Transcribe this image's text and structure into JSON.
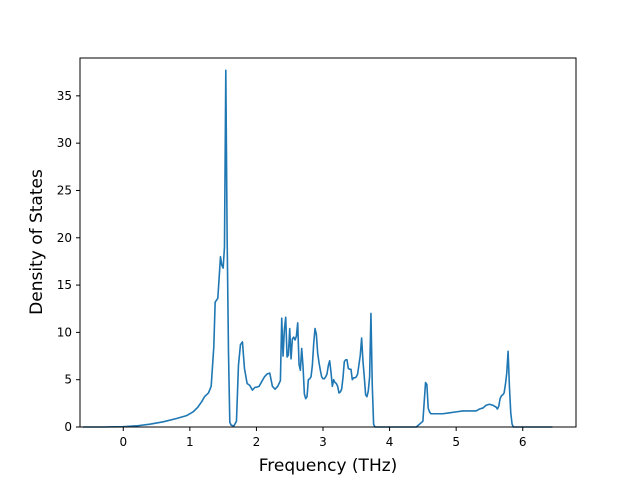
{
  "chart_data": {
    "type": "line",
    "title": "",
    "xlabel": "Frequency (THz)",
    "ylabel": "Density of States",
    "xlim": [
      -0.65,
      6.8
    ],
    "ylim": [
      0,
      39
    ],
    "xticks": [
      0,
      1,
      2,
      3,
      4,
      5,
      6
    ],
    "yticks": [
      0,
      5,
      10,
      15,
      20,
      25,
      30,
      35
    ],
    "grid": false,
    "legend": "none",
    "series_color": "#1f77b4",
    "series": [
      {
        "x": [
          -0.6,
          -0.3,
          0.0,
          0.2,
          0.4,
          0.6,
          0.8,
          0.95,
          1.05,
          1.12,
          1.18,
          1.22,
          1.28,
          1.32,
          1.36,
          1.38,
          1.42,
          1.46,
          1.48,
          1.5,
          1.52,
          1.54,
          1.56,
          1.58,
          1.6,
          1.62,
          1.66,
          1.7,
          1.73,
          1.76,
          1.79,
          1.82,
          1.86,
          1.9,
          1.94,
          1.98,
          2.0,
          2.04,
          2.08,
          2.12,
          2.16,
          2.2,
          2.24,
          2.28,
          2.32,
          2.36,
          2.38,
          2.4,
          2.42,
          2.44,
          2.46,
          2.48,
          2.5,
          2.52,
          2.54,
          2.56,
          2.58,
          2.6,
          2.62,
          2.64,
          2.66,
          2.68,
          2.7,
          2.72,
          2.74,
          2.76,
          2.78,
          2.8,
          2.82,
          2.84,
          2.86,
          2.88,
          2.9,
          2.92,
          2.94,
          2.96,
          2.98,
          3.0,
          3.02,
          3.04,
          3.06,
          3.08,
          3.1,
          3.12,
          3.14,
          3.16,
          3.18,
          3.2,
          3.22,
          3.24,
          3.26,
          3.28,
          3.3,
          3.32,
          3.34,
          3.36,
          3.38,
          3.4,
          3.42,
          3.44,
          3.46,
          3.48,
          3.5,
          3.52,
          3.54,
          3.56,
          3.58,
          3.6,
          3.62,
          3.64,
          3.66,
          3.68,
          3.7,
          3.72,
          3.74,
          3.76,
          3.78,
          3.8,
          3.82,
          3.84,
          3.86,
          3.88,
          3.9,
          3.92,
          3.94,
          3.96,
          3.98,
          4.0,
          4.02,
          4.04,
          4.06,
          4.08,
          4.1,
          4.12,
          4.14,
          4.16,
          4.18,
          4.2,
          4.22,
          4.3,
          4.4,
          4.5,
          4.54,
          4.56,
          4.58,
          4.6,
          4.62,
          4.64,
          4.66,
          4.7,
          4.8,
          4.9,
          5.0,
          5.1,
          5.2,
          5.3,
          5.35,
          5.4,
          5.45,
          5.5,
          5.55,
          5.6,
          5.62,
          5.64,
          5.66,
          5.68,
          5.7,
          5.72,
          5.74,
          5.76,
          5.78,
          5.8,
          5.82,
          5.84,
          5.86,
          5.9,
          6.0,
          6.2,
          6.44
        ],
        "y": [
          0,
          0,
          0.03,
          0.12,
          0.3,
          0.55,
          0.9,
          1.2,
          1.6,
          2.1,
          2.7,
          3.2,
          3.6,
          4.3,
          8.5,
          13.2,
          13.6,
          18.0,
          17.1,
          16.8,
          19.0,
          37.7,
          20.0,
          8.0,
          0.5,
          0.2,
          0.1,
          0.6,
          6.5,
          8.7,
          9.0,
          6.2,
          4.6,
          4.4,
          3.9,
          4.2,
          4.2,
          4.3,
          4.8,
          5.3,
          5.6,
          5.7,
          4.3,
          4.0,
          4.3,
          4.9,
          11.5,
          7.5,
          10.3,
          11.6,
          7.4,
          7.6,
          10.4,
          7.2,
          9.3,
          9.5,
          9.2,
          9.6,
          11.0,
          6.6,
          6.0,
          8.3,
          6.4,
          3.5,
          3.0,
          3.2,
          5.0,
          5.1,
          5.3,
          6.5,
          8.8,
          10.4,
          9.8,
          7.8,
          6.8,
          6.0,
          5.3,
          5.1,
          5.1,
          5.3,
          5.6,
          6.5,
          7.0,
          5.8,
          4.3,
          5.0,
          4.7,
          4.6,
          4.3,
          3.6,
          3.7,
          4.0,
          5.2,
          6.9,
          7.1,
          7.1,
          6.2,
          6.1,
          6.1,
          5.0,
          5.2,
          5.2,
          5.3,
          5.6,
          6.6,
          7.6,
          9.4,
          7.0,
          5.3,
          3.4,
          3.2,
          3.8,
          5.3,
          12.0,
          4.4,
          0.3,
          0,
          0,
          0,
          0,
          0,
          0,
          0,
          0,
          0,
          0,
          0,
          0,
          0,
          0,
          0,
          0,
          0,
          0,
          0,
          0,
          0,
          0,
          0,
          0,
          0,
          0.6,
          4.7,
          4.5,
          2.0,
          1.6,
          1.4,
          1.4,
          1.4,
          1.4,
          1.4,
          1.5,
          1.6,
          1.7,
          1.7,
          1.7,
          1.9,
          2.0,
          2.3,
          2.4,
          2.3,
          2.1,
          1.9,
          2.2,
          3.0,
          3.3,
          3.4,
          3.6,
          4.5,
          5.7,
          8.0,
          4.3,
          1.5,
          0.3,
          0,
          0,
          0,
          0,
          0
        ]
      }
    ]
  }
}
